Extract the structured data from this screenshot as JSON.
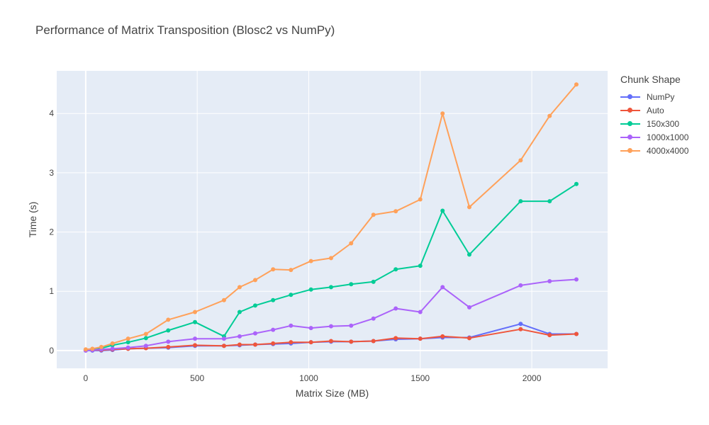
{
  "chart_data": {
    "type": "line",
    "title": "Performance of Matrix Transposition (Blosc2 vs NumPy)",
    "xlabel": "Matrix Size (MB)",
    "ylabel": "Time (s)",
    "xlim": [
      -130,
      2340
    ],
    "ylim": [
      -0.3,
      4.72
    ],
    "xticks": [
      0,
      500,
      1000,
      1500,
      2000
    ],
    "yticks": [
      0,
      1,
      2,
      3,
      4
    ],
    "grid": true,
    "legend_title": "Chunk Shape",
    "legend_position": "right",
    "x": [
      0,
      30,
      70,
      120,
      190,
      270,
      370,
      490,
      620,
      690,
      760,
      840,
      920,
      1010,
      1100,
      1190,
      1290,
      1390,
      1500,
      1600,
      1720,
      1950,
      2080,
      2200
    ],
    "series": [
      {
        "name": "NumPy",
        "color": "#636efa",
        "values": [
          0.0,
          0.0,
          0.0,
          0.01,
          0.03,
          0.04,
          0.05,
          0.08,
          0.08,
          0.09,
          0.1,
          0.11,
          0.12,
          0.14,
          0.15,
          0.15,
          0.16,
          0.19,
          0.2,
          0.22,
          0.22,
          0.45,
          0.28,
          0.28
        ]
      },
      {
        "name": "Auto",
        "color": "#ef553b",
        "values": [
          0.01,
          0.01,
          0.01,
          0.02,
          0.03,
          0.04,
          0.06,
          0.09,
          0.08,
          0.1,
          0.1,
          0.12,
          0.14,
          0.14,
          0.16,
          0.15,
          0.16,
          0.21,
          0.2,
          0.24,
          0.21,
          0.36,
          0.26,
          0.28
        ]
      },
      {
        "name": "150x300",
        "color": "#00cc96",
        "values": [
          0.01,
          0.02,
          0.04,
          0.09,
          0.14,
          0.21,
          0.34,
          0.48,
          0.24,
          0.65,
          0.76,
          0.85,
          0.94,
          1.03,
          1.07,
          1.12,
          1.16,
          1.37,
          1.43,
          2.36,
          1.62,
          2.52,
          2.52,
          2.81
        ]
      },
      {
        "name": "1000x1000",
        "color": "#ab63fa",
        "values": [
          0.0,
          0.01,
          0.02,
          0.03,
          0.05,
          0.08,
          0.15,
          0.2,
          0.2,
          0.24,
          0.29,
          0.35,
          0.42,
          0.38,
          0.41,
          0.42,
          0.54,
          0.71,
          0.65,
          1.07,
          0.73,
          1.1,
          1.17,
          1.2
        ]
      },
      {
        "name": "4000x4000",
        "color": "#ffa15a",
        "values": [
          0.02,
          0.03,
          0.06,
          0.12,
          0.2,
          0.28,
          0.52,
          0.65,
          0.85,
          1.07,
          1.19,
          1.37,
          1.36,
          1.51,
          1.56,
          1.81,
          2.29,
          2.35,
          2.55,
          4.0,
          2.42,
          3.21,
          3.96,
          4.49
        ]
      }
    ]
  }
}
